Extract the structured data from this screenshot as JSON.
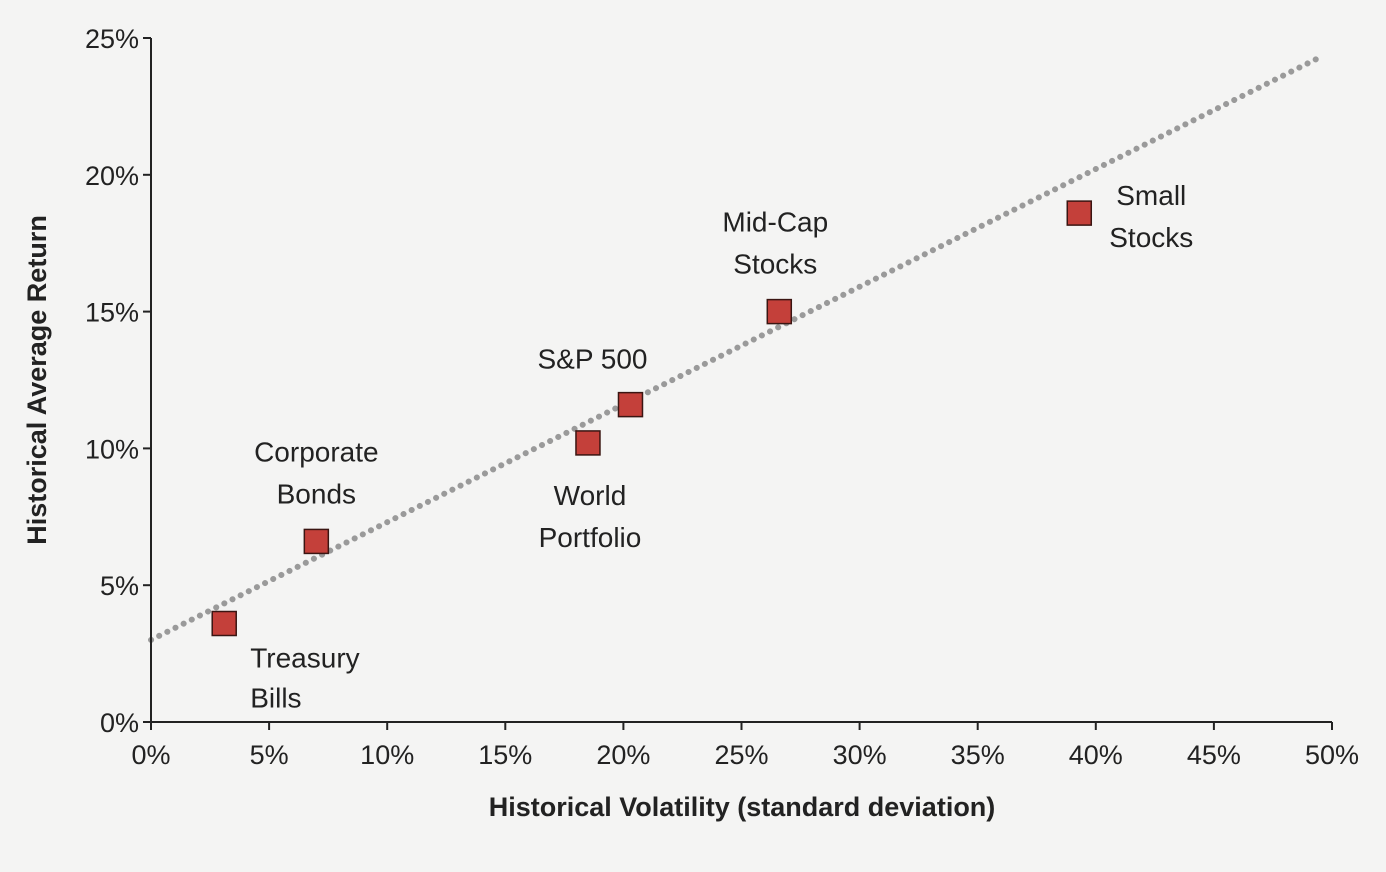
{
  "chart_data": {
    "type": "scatter",
    "title": "",
    "xlabel": "Historical Volatility (standard deviation)",
    "ylabel": "Historical Average Return",
    "xlim": [
      0,
      50
    ],
    "ylim": [
      0,
      25
    ],
    "x_ticks": [
      "0%",
      "5%",
      "10%",
      "15%",
      "20%",
      "25%",
      "30%",
      "35%",
      "40%",
      "45%",
      "50%"
    ],
    "y_ticks": [
      "0%",
      "5%",
      "10%",
      "15%",
      "20%",
      "25%"
    ],
    "grid": false,
    "colors": {
      "marker": "#c4403a",
      "marker_edge": "#3a1512",
      "trend": "#9a9a9a",
      "axis": "#222222"
    },
    "points": [
      {
        "label": [
          "Treasury",
          "Bills"
        ],
        "x": 3.1,
        "y": 3.6
      },
      {
        "label": [
          "Corporate",
          "Bonds"
        ],
        "x": 7.0,
        "y": 6.6
      },
      {
        "label": [
          "World",
          "Portfolio"
        ],
        "x": 18.5,
        "y": 10.2
      },
      {
        "label": [
          "S&P 500"
        ],
        "x": 20.3,
        "y": 11.6
      },
      {
        "label": [
          "Mid-Cap",
          "Stocks"
        ],
        "x": 26.6,
        "y": 15.0
      },
      {
        "label": [
          "Small",
          "Stocks"
        ],
        "x": 39.3,
        "y": 18.6
      }
    ],
    "trend_line": {
      "style": "dotted",
      "from": [
        0,
        3.0
      ],
      "to": [
        49.5,
        24.3
      ]
    }
  }
}
